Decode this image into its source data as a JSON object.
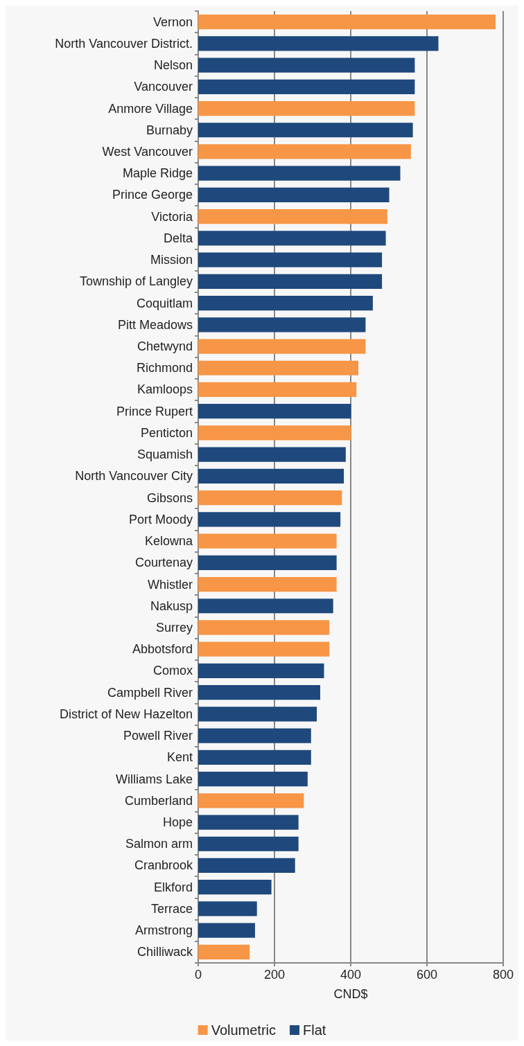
{
  "chart_data": {
    "type": "bar",
    "orientation": "horizontal",
    "stacked": true,
    "xlabel": "CND$",
    "categories": [
      "Vernon",
      "North Vancouver District.",
      "Nelson",
      "Vancouver",
      "Anmore Village",
      "Burnaby",
      "West Vancouver",
      "Maple Ridge",
      "Prince George",
      "Victoria",
      "Delta",
      "Mission",
      "Township of Langley",
      "Coquitlam",
      "Pitt Meadows",
      "Chetwynd",
      "Richmond",
      "Kamloops",
      "Prince Rupert",
      "Penticton",
      "Squamish",
      "North Vancouver City",
      "Gibsons",
      "Port Moody",
      "Kelowna",
      "Courtenay",
      "Whistler",
      "Nakusp",
      "Surrey",
      "Abbotsford",
      "Comox",
      "Campbell River",
      "District of New Hazelton",
      "Powell River",
      "Kent",
      "Williams Lake",
      "Cumberland",
      "Hope",
      "Salmon arm",
      "Cranbrook",
      "Elkford",
      "Terrace",
      "Armstrong",
      "Chilliwack"
    ],
    "series": [
      {
        "name": "Volumetric",
        "color": "#f79646",
        "values": [
          780,
          null,
          null,
          null,
          568,
          null,
          558,
          null,
          null,
          496,
          null,
          null,
          null,
          null,
          null,
          439,
          420,
          415,
          null,
          401,
          null,
          null,
          377,
          null,
          363,
          null,
          363,
          null,
          344,
          344,
          null,
          null,
          null,
          null,
          null,
          null,
          277,
          null,
          null,
          null,
          null,
          null,
          null,
          135
        ]
      },
      {
        "name": "Flat",
        "color": "#1f497d",
        "values": [
          null,
          630,
          568,
          568,
          null,
          563,
          null,
          530,
          501,
          null,
          492,
          482,
          482,
          458,
          439,
          null,
          null,
          null,
          401,
          null,
          387,
          382,
          null,
          373,
          null,
          363,
          null,
          354,
          null,
          null,
          330,
          320,
          311,
          296,
          296,
          287,
          null,
          263,
          263,
          254,
          192,
          154,
          149,
          null
        ]
      }
    ],
    "xlim": [
      0,
      800
    ],
    "xticks": [
      0,
      200,
      400,
      600,
      800
    ],
    "grid": "x",
    "legend": "bottom"
  }
}
